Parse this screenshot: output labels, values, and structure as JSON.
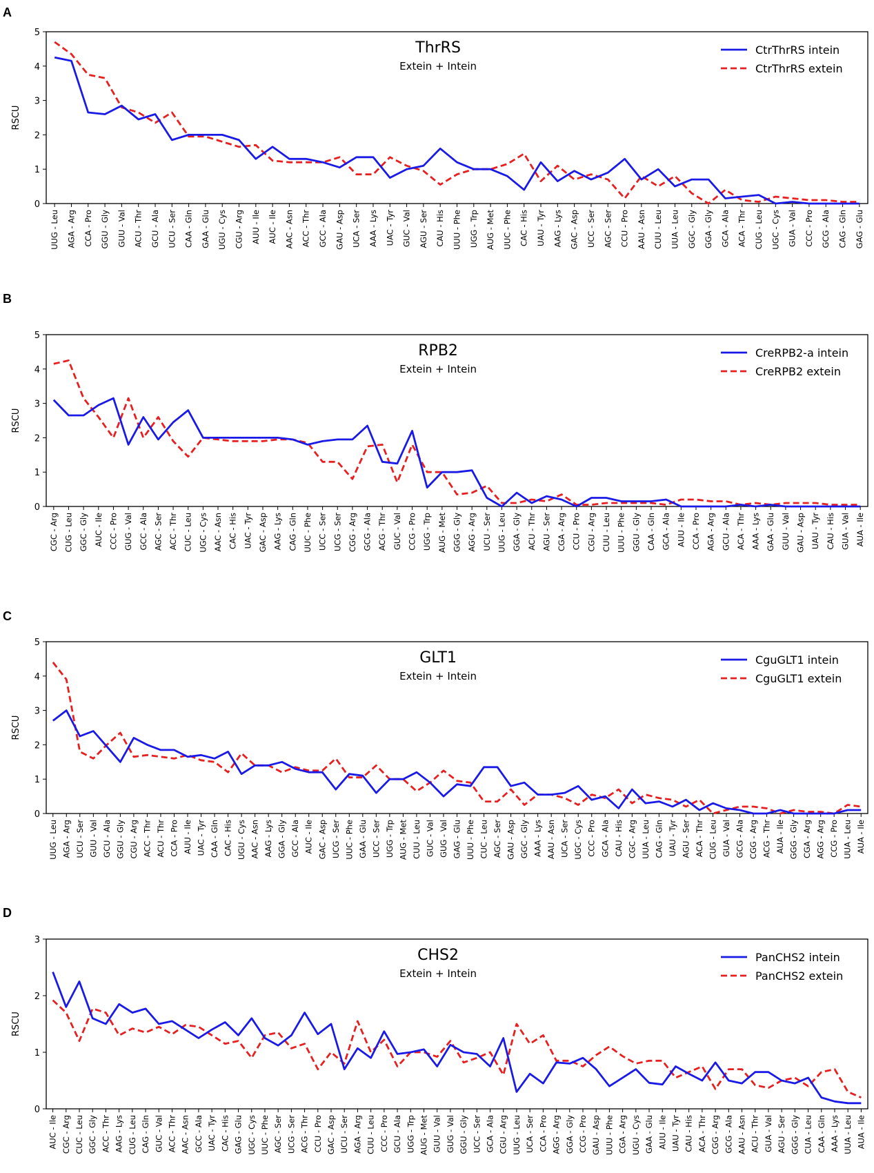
{
  "chart_data": [
    {
      "panel": "A",
      "type": "line",
      "title": "ThrRS",
      "subtitle": "Extein + Intein",
      "xlabel": "",
      "ylabel": "RSCU",
      "ylim": [
        0,
        5
      ],
      "yticks": [
        0,
        1,
        2,
        3,
        4,
        5
      ],
      "legend_position": "top-right",
      "categories": [
        "UUG - Leu",
        "AGA - Arg",
        "CCA - Pro",
        "GGU - Gly",
        "GUU - Val",
        "ACU - Thr",
        "GCU - Ala",
        "UCU - Ser",
        "CAA - Gln",
        "GAA - Glu",
        "UGU - Cys",
        "CGU - Arg",
        "AUU - Ile",
        "AUC - Ile",
        "AAC - Asn",
        "ACC - Thr",
        "GCC - Ala",
        "GAU - Asp",
        "UCA - Ser",
        "AAA - Lys",
        "UAC - Tyr",
        "GUC - Val",
        "AGU - Ser",
        "CAU - His",
        "UUU - Phe",
        "UGG - Trp",
        "AUG - Met",
        "UUC - Phe",
        "CAC - His",
        "UAU - Tyr",
        "AAG - Lys",
        "GAC - Asp",
        "UCC - Ser",
        "AGC - Ser",
        "CCU - Pro",
        "AAU - Asn",
        "CUU - Leu",
        "UUA - Leu",
        "GGC - Gly",
        "GGA - Gly",
        "GCA - Ala",
        "ACA - Thr",
        "CUG - Leu",
        "UGC - Cys",
        "GUA - Val",
        "CCC - Pro",
        "GCG - Ala",
        "CAG - Gln",
        "GAG - Glu"
      ],
      "series": [
        {
          "name": "CtrThrRS intein",
          "color": "#1a1ae6",
          "style": "solid",
          "values": [
            4.25,
            4.15,
            2.65,
            2.6,
            2.85,
            2.45,
            2.6,
            1.85,
            2.0,
            2.0,
            2.0,
            1.85,
            1.3,
            1.65,
            1.3,
            1.3,
            1.2,
            1.05,
            1.35,
            1.35,
            0.75,
            1.0,
            1.1,
            1.6,
            1.2,
            1.0,
            1.0,
            0.8,
            0.4,
            1.2,
            0.65,
            0.95,
            0.7,
            0.9,
            1.3,
            0.7,
            1.0,
            0.5,
            0.7,
            0.7,
            0.15,
            0.2,
            0.25,
            0.0,
            0.05,
            0.0,
            0.0,
            0.0,
            0.0
          ]
        },
        {
          "name": "CtrThrRS extein",
          "color": "#e62020",
          "style": "dashed",
          "values": [
            4.7,
            4.35,
            3.75,
            3.65,
            2.8,
            2.65,
            2.35,
            2.65,
            1.95,
            1.95,
            1.8,
            1.65,
            1.7,
            1.25,
            1.2,
            1.2,
            1.2,
            1.35,
            0.85,
            0.85,
            1.35,
            1.1,
            0.95,
            0.55,
            0.85,
            1.0,
            1.0,
            1.15,
            1.45,
            0.65,
            1.1,
            0.7,
            0.85,
            0.7,
            0.15,
            0.8,
            0.5,
            0.8,
            0.3,
            0.0,
            0.4,
            0.1,
            0.05,
            0.2,
            0.15,
            0.1,
            0.1,
            0.05,
            0.05
          ]
        }
      ]
    },
    {
      "panel": "B",
      "type": "line",
      "title": "RPB2",
      "subtitle": "Extein + Intein",
      "xlabel": "",
      "ylabel": "RSCU",
      "ylim": [
        0,
        5
      ],
      "yticks": [
        0,
        1,
        2,
        3,
        4,
        5
      ],
      "legend_position": "top-right",
      "categories": [
        "CGC - Arg",
        "CUG - Leu",
        "GGC - Gly",
        "AUC - Ile",
        "CCC - Pro",
        "GUG - Val",
        "GCC - Ala",
        "AGC - Ser",
        "ACC - Thr",
        "CUC - Leu",
        "UGC - Cys",
        "AAC - Asn",
        "CAC - His",
        "UAC - Tyr",
        "GAC - Asp",
        "AAG - Lys",
        "CAG - Gln",
        "UUC - Phe",
        "UCC - Ser",
        "UCG - Ser",
        "CGG - Arg",
        "GCG - Ala",
        "ACG - Thr",
        "GUC - Val",
        "CCG - Pro",
        "UGG - Trp",
        "AUG - Met",
        "GGG - Gly",
        "AGG - Arg",
        "UCU - Ser",
        "UUG - Leu",
        "GGA - Gly",
        "ACU - Thr",
        "AGU - Ser",
        "CGA - Arg",
        "CCU - Pro",
        "CGU - Arg",
        "CUU - Leu",
        "UUU - Phe",
        "GGU - Gly",
        "CAA - Gln",
        "GCA - Ala",
        "AUU - Ile",
        "CCA - Pro",
        "AGA - Arg",
        "GCU - Ala",
        "ACA - Thr",
        "AAA - Lys",
        "GAA - Glu",
        "GUU - Val",
        "GAU - Asp",
        "UAU - Tyr",
        "CAU - His",
        "GUA - Val",
        "AUA - Ile"
      ],
      "series": [
        {
          "name": "CreRPB2-a intein",
          "color": "#1a1ae6",
          "style": "solid",
          "values": [
            3.1,
            2.65,
            2.65,
            2.95,
            3.15,
            1.8,
            2.6,
            1.95,
            2.45,
            2.8,
            2.0,
            2.0,
            2.0,
            2.0,
            2.0,
            2.0,
            1.95,
            1.8,
            1.9,
            1.95,
            1.95,
            2.35,
            1.3,
            1.25,
            2.2,
            0.55,
            1.0,
            1.0,
            1.05,
            0.25,
            0.0,
            0.4,
            0.1,
            0.3,
            0.2,
            0.0,
            0.25,
            0.25,
            0.15,
            0.15,
            0.15,
            0.2,
            0.0,
            0.0,
            0.0,
            0.0,
            0.05,
            0.0,
            0.05,
            0.0,
            0.0,
            0.0,
            0.0,
            0.0,
            0.0
          ]
        },
        {
          "name": "CreRPB2 extein",
          "color": "#e62020",
          "style": "dashed",
          "values": [
            4.15,
            4.25,
            3.15,
            2.6,
            2.0,
            3.15,
            2.0,
            2.6,
            1.9,
            1.45,
            2.0,
            1.95,
            1.9,
            1.9,
            1.9,
            1.95,
            1.95,
            1.85,
            1.3,
            1.3,
            0.8,
            1.75,
            1.8,
            0.7,
            1.8,
            1.0,
            1.0,
            0.35,
            0.4,
            0.6,
            0.1,
            0.1,
            0.2,
            0.15,
            0.35,
            0.05,
            0.05,
            0.1,
            0.1,
            0.1,
            0.1,
            0.05,
            0.2,
            0.2,
            0.15,
            0.15,
            0.05,
            0.1,
            0.05,
            0.1,
            0.1,
            0.1,
            0.05,
            0.05,
            0.05
          ]
        }
      ]
    },
    {
      "panel": "C",
      "type": "line",
      "title": "GLT1",
      "subtitle": "Extein + Intein",
      "xlabel": "",
      "ylabel": "RSCU",
      "ylim": [
        0,
        5
      ],
      "yticks": [
        0,
        1,
        2,
        3,
        4,
        5
      ],
      "legend_position": "top-right",
      "categories": [
        "UUG - Leu",
        "AGA - Arg",
        "UCU - Ser",
        "GUU - Val",
        "GCU - Ala",
        "GGU - Gly",
        "CGU - Arg",
        "ACC - Thr",
        "ACU - Thr",
        "CCA - Pro",
        "AUU - Ile",
        "UAC - Tyr",
        "CAA - Gln",
        "CAC - His",
        "UGU - Cys",
        "AAC - Asn",
        "AAG - Lys",
        "GGA - Gly",
        "GCC - Ala",
        "AUC - Ile",
        "GAC - Asp",
        "UCG - Ser",
        "UUC - Phe",
        "GAA - Glu",
        "UCC - Ser",
        "UGG - Trp",
        "AUG - Met",
        "CUU - Leu",
        "GUC - Val",
        "GUG - Val",
        "GAG - Glu",
        "UUU - Phe",
        "CUC - Leu",
        "AGC - Ser",
        "GAU - Asp",
        "GGC - Gly",
        "AAA - Lys",
        "AAU - Asn",
        "UCA - Ser",
        "UGC - Cys",
        "CCC - Pro",
        "GCA - Ala",
        "CAU - His",
        "CGC - Arg",
        "UUA - Leu",
        "CAG - Gln",
        "UAU - Tyr",
        "AGU - Ser",
        "ACA - Thr",
        "CUG - Leu",
        "GUA - Val",
        "GCG - Ala",
        "CGG - Arg",
        "ACG - Thr",
        "AUA - Ile",
        "GGG - Gly",
        "CGA - Arg",
        "AGG - Arg",
        "CCG - Pro",
        "UUA - Leu",
        "AUA - Ile"
      ],
      "series": [
        {
          "name": "CguGLT1 intein",
          "color": "#1a1ae6",
          "style": "solid",
          "values": [
            2.7,
            3.0,
            2.25,
            2.4,
            1.95,
            1.5,
            2.2,
            2.0,
            1.85,
            1.85,
            1.65,
            1.7,
            1.6,
            1.8,
            1.15,
            1.4,
            1.4,
            1.5,
            1.3,
            1.2,
            1.2,
            0.7,
            1.15,
            1.1,
            0.6,
            1.0,
            1.0,
            1.2,
            0.9,
            0.5,
            0.85,
            0.8,
            1.35,
            1.35,
            0.8,
            0.9,
            0.55,
            0.55,
            0.6,
            0.8,
            0.4,
            0.5,
            0.15,
            0.7,
            0.3,
            0.35,
            0.2,
            0.4,
            0.1,
            0.3,
            0.15,
            0.1,
            0.0,
            0.0,
            0.1,
            0.0,
            0.0,
            0.0,
            0.0,
            0.1,
            0.1
          ]
        },
        {
          "name": "CguGLT1 extein",
          "color": "#e62020",
          "style": "dashed",
          "values": [
            4.4,
            3.9,
            1.8,
            1.6,
            2.0,
            2.35,
            1.65,
            1.7,
            1.65,
            1.6,
            1.7,
            1.55,
            1.5,
            1.2,
            1.75,
            1.4,
            1.4,
            1.2,
            1.35,
            1.25,
            1.25,
            1.6,
            1.05,
            1.05,
            1.4,
            1.0,
            1.0,
            0.65,
            0.9,
            1.25,
            0.95,
            0.9,
            0.35,
            0.35,
            0.7,
            0.25,
            0.55,
            0.55,
            0.45,
            0.25,
            0.55,
            0.45,
            0.7,
            0.3,
            0.55,
            0.45,
            0.4,
            0.2,
            0.4,
            0.0,
            0.1,
            0.2,
            0.2,
            0.15,
            0.0,
            0.1,
            0.05,
            0.05,
            0.0,
            0.25,
            0.2
          ]
        }
      ]
    },
    {
      "panel": "D",
      "type": "line",
      "title": "CHS2",
      "subtitle": "Extein + Intein",
      "xlabel": "",
      "ylabel": "RSCU",
      "ylim": [
        0,
        3
      ],
      "yticks": [
        0,
        1,
        2,
        3
      ],
      "legend_position": "top-right",
      "categories": [
        "AUC - Ile",
        "CGC - Arg",
        "CUC - Leu",
        "GGC - Gly",
        "ACC - Thr",
        "AAG - Lys",
        "CUG - Leu",
        "CAG - Gln",
        "GUC - Val",
        "ACC - Thr",
        "AAC - Asn",
        "GCC - Ala",
        "UAC - Tyr",
        "CAC - His",
        "GAG - Glu",
        "UGC - Cys",
        "UUC - Phe",
        "AGC - Ser",
        "UCG - Ser",
        "ACG - Thr",
        "CCU - Pro",
        "GAC - Asp",
        "UCU - Ser",
        "AGA - Arg",
        "CUU - Leu",
        "CCC - Pro",
        "GCU - Ala",
        "UGG - Trp",
        "AUG - Met",
        "GUU - Val",
        "GUG - Val",
        "GGU - Gly",
        "UCC - Ser",
        "GCA - Ala",
        "CGU - Arg",
        "UUG - Leu",
        "UCA - Ser",
        "CCA - Pro",
        "AGG - Arg",
        "GGA - Gly",
        "CCG - Pro",
        "GAU - Asp",
        "UUU - Phe",
        "CGA - Arg",
        "UGU - Cys",
        "GAA - Glu",
        "AUU - Ile",
        "UAU - Tyr",
        "CAU - His",
        "ACA - Thr",
        "CGG - Arg",
        "GCG - Ala",
        "AAU - Asn",
        "ACU - Thr",
        "GUA - Val",
        "AGU - Ser",
        "GGG - Gly",
        "CUA - Leu",
        "CAA - Gln",
        "AAA - Lys",
        "UUA - Leu",
        "AUA - Ile"
      ],
      "series": [
        {
          "name": "PanCHS2 intein",
          "color": "#1a1ae6",
          "style": "solid",
          "values": [
            2.42,
            1.8,
            2.25,
            1.6,
            1.5,
            1.85,
            1.7,
            1.77,
            1.5,
            1.55,
            1.4,
            1.25,
            1.4,
            1.53,
            1.3,
            1.6,
            1.25,
            1.12,
            1.3,
            1.7,
            1.32,
            1.5,
            0.7,
            1.07,
            0.9,
            1.37,
            0.97,
            1.0,
            1.05,
            0.75,
            1.13,
            1.0,
            0.97,
            0.75,
            1.25,
            0.3,
            0.62,
            0.45,
            0.82,
            0.8,
            0.9,
            0.7,
            0.4,
            0.55,
            0.7,
            0.46,
            0.43,
            0.75,
            0.62,
            0.5,
            0.82,
            0.5,
            0.45,
            0.65,
            0.65,
            0.5,
            0.45,
            0.55,
            0.2,
            0.13,
            0.1,
            0.1
          ]
        },
        {
          "name": "PanCHS2 extein",
          "color": "#e62020",
          "style": "dashed",
          "values": [
            1.92,
            1.7,
            1.2,
            1.77,
            1.7,
            1.3,
            1.42,
            1.35,
            1.45,
            1.32,
            1.48,
            1.45,
            1.3,
            1.15,
            1.2,
            0.9,
            1.3,
            1.35,
            1.07,
            1.15,
            0.7,
            1.0,
            0.8,
            1.55,
            1.0,
            1.22,
            0.75,
            1.0,
            1.0,
            0.92,
            1.2,
            0.82,
            0.9,
            1.0,
            0.6,
            1.5,
            1.15,
            1.3,
            0.85,
            0.85,
            0.75,
            0.95,
            1.1,
            0.93,
            0.8,
            0.85,
            0.85,
            0.55,
            0.65,
            0.75,
            0.35,
            0.7,
            0.7,
            0.42,
            0.37,
            0.5,
            0.55,
            0.4,
            0.65,
            0.7,
            0.3,
            0.2
          ]
        }
      ]
    }
  ]
}
